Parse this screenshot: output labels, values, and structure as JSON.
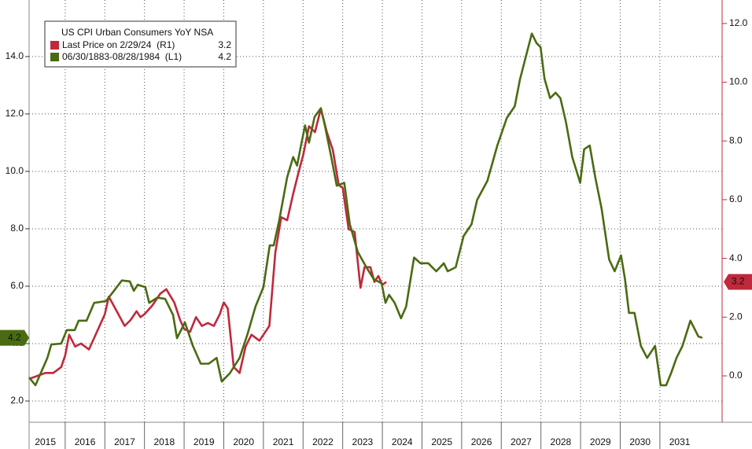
{
  "chart_data": {
    "type": "line",
    "title": "US CPI Urban Consumers YoY NSA",
    "xlim": [
      2015.09,
      2032.57
    ],
    "xticks": [
      2015,
      2016,
      2017,
      2018,
      2019,
      2020,
      2021,
      2022,
      2023,
      2024,
      2025,
      2026,
      2027,
      2028,
      2029,
      2030,
      2031
    ],
    "ylim": [
      1.26,
      15.97
    ],
    "yticks": [
      {
        "value": 2,
        "label": "2.0"
      },
      {
        "value": 4,
        "label": "4.0"
      },
      {
        "value": 6,
        "label": "6.0"
      },
      {
        "value": 8,
        "label": "8.0"
      },
      {
        "value": 10,
        "label": "10.0"
      },
      {
        "value": 12,
        "label": "12.0"
      },
      {
        "value": 14,
        "label": "14.0"
      }
    ],
    "y2lim": [
      -1.58,
      12.8
    ],
    "y2ticks": [
      {
        "value": 0,
        "label": "0.0"
      },
      {
        "value": 2,
        "label": "2.0"
      },
      {
        "value": 4,
        "label": "4.0"
      },
      {
        "value": 6,
        "label": "6.0"
      },
      {
        "value": 8,
        "label": "8.0"
      },
      {
        "value": 10,
        "label": "10.0"
      },
      {
        "value": 12,
        "label": "12.0"
      }
    ],
    "grid": true,
    "legend": "upper left",
    "series": [
      {
        "name": "Last Price on 2/29/24  (R1)",
        "color": "#c0283c",
        "axis": "y2",
        "x": [
          2015.1,
          2015.3,
          2015.5,
          2015.7,
          2015.9,
          2016.0,
          2016.1,
          2016.25,
          2016.4,
          2016.6,
          2016.8,
          2017.0,
          2017.1,
          2017.3,
          2017.5,
          2017.65,
          2017.8,
          2017.9,
          2018.0,
          2018.2,
          2018.4,
          2018.55,
          2018.75,
          2018.9,
          2019.0,
          2019.15,
          2019.3,
          2019.45,
          2019.6,
          2019.75,
          2019.9,
          2020.0,
          2020.1,
          2020.25,
          2020.4,
          2020.55,
          2020.7,
          2020.9,
          2021.0,
          2021.15,
          2021.3,
          2021.45,
          2021.6,
          2021.75,
          2021.9,
          2022.0,
          2022.15,
          2022.3,
          2022.45,
          2022.6,
          2022.75,
          2022.9,
          2023.0,
          2023.15,
          2023.3,
          2023.45,
          2023.55,
          2023.7,
          2023.8,
          2023.9,
          2024.0,
          2024.1
        ],
        "values": [
          -0.1,
          0.0,
          0.1,
          0.1,
          0.3,
          0.7,
          1.4,
          1.0,
          1.1,
          0.9,
          1.5,
          2.1,
          2.7,
          2.2,
          1.7,
          1.9,
          2.2,
          2.0,
          2.1,
          2.4,
          2.8,
          2.95,
          2.5,
          1.9,
          1.6,
          1.5,
          2.0,
          1.7,
          1.8,
          1.7,
          2.1,
          2.5,
          2.3,
          0.3,
          0.1,
          1.0,
          1.4,
          1.2,
          1.4,
          1.7,
          4.2,
          5.4,
          5.3,
          6.2,
          7.0,
          7.5,
          8.5,
          8.3,
          9.1,
          8.3,
          7.7,
          6.5,
          6.4,
          5.0,
          4.9,
          3.0,
          3.7,
          3.7,
          3.2,
          3.4,
          3.1,
          3.2
        ]
      },
      {
        "name": "06/30/1883-08/28/1984  (L1)",
        "color": "#4a6b12",
        "axis": "y",
        "x": [
          2015.09,
          2015.25,
          2015.55,
          2015.65,
          2015.9,
          2016.04,
          2016.24,
          2016.34,
          2016.54,
          2016.73,
          2017.03,
          2017.23,
          2017.43,
          2017.63,
          2017.73,
          2017.83,
          2018.02,
          2018.12,
          2018.32,
          2018.52,
          2018.72,
          2018.82,
          2019.02,
          2019.22,
          2019.42,
          2019.62,
          2019.82,
          2019.95,
          2020.15,
          2020.4,
          2020.6,
          2020.8,
          2021.0,
          2021.16,
          2021.26,
          2021.4,
          2021.6,
          2021.75,
          2021.85,
          2021.93,
          2022.05,
          2022.15,
          2022.29,
          2022.45,
          2022.55,
          2022.73,
          2022.85,
          2023.04,
          2023.18,
          2023.38,
          2023.58,
          2023.78,
          2023.98,
          2024.08,
          2024.17,
          2024.31,
          2024.47,
          2024.6,
          2024.8,
          2024.96,
          2025.16,
          2025.36,
          2025.55,
          2025.65,
          2025.85,
          2026.05,
          2026.25,
          2026.39,
          2026.65,
          2026.9,
          2027.14,
          2027.34,
          2027.47,
          2027.63,
          2027.77,
          2027.89,
          2027.99,
          2028.09,
          2028.23,
          2028.37,
          2028.49,
          2028.63,
          2028.79,
          2028.99,
          2029.09,
          2029.23,
          2029.37,
          2029.53,
          2029.72,
          2029.86,
          2030.02,
          2030.12,
          2030.22,
          2030.36,
          2030.52,
          2030.68,
          2030.88,
          2031.02,
          2031.16,
          2031.28,
          2031.42,
          2031.57,
          2031.77,
          2031.97,
          2032.07
        ],
        "values": [
          2.82,
          2.55,
          3.5,
          3.97,
          4.0,
          4.47,
          4.47,
          4.8,
          4.8,
          5.42,
          5.48,
          5.84,
          6.2,
          6.17,
          5.84,
          6.05,
          5.97,
          5.42,
          5.6,
          5.56,
          5.0,
          4.19,
          4.74,
          3.92,
          3.3,
          3.3,
          3.5,
          2.68,
          2.96,
          3.5,
          4.33,
          5.29,
          5.97,
          7.42,
          7.42,
          8.3,
          9.8,
          10.5,
          10.2,
          10.77,
          11.6,
          11.0,
          11.9,
          12.2,
          11.6,
          10.36,
          9.5,
          9.6,
          8.16,
          7.2,
          6.7,
          6.25,
          6.1,
          5.42,
          5.7,
          5.42,
          4.88,
          5.29,
          7.0,
          6.8,
          6.8,
          6.52,
          6.8,
          6.52,
          6.66,
          7.75,
          8.16,
          9.0,
          9.67,
          10.9,
          11.86,
          12.27,
          13.2,
          14.05,
          14.8,
          14.47,
          14.33,
          13.23,
          12.55,
          12.74,
          12.55,
          11.73,
          10.5,
          9.6,
          10.77,
          10.9,
          9.8,
          8.7,
          6.93,
          6.52,
          7.07,
          6.25,
          5.07,
          5.07,
          3.92,
          3.5,
          3.92,
          2.55,
          2.55,
          2.96,
          3.5,
          3.92,
          4.8,
          4.25,
          4.2
        ]
      }
    ]
  }
}
